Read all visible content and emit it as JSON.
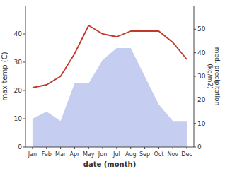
{
  "chart_data": {
    "type": "line",
    "x_label": "date (month)",
    "y_label": "max temp (C)",
    "y2_label": "med. precipitation\n(kg/m2)",
    "categories": [
      "Jan",
      "Feb",
      "Mar",
      "Apr",
      "May",
      "Jun",
      "Jul",
      "Aug",
      "Sep",
      "Oct",
      "Nov",
      "Dec"
    ],
    "series": [
      {
        "type": "area",
        "axis": "y2",
        "color": "#c5cdf0",
        "values": [
          12,
          15,
          11,
          27,
          27,
          37,
          42,
          42,
          30,
          18,
          11,
          11
        ]
      },
      {
        "type": "line",
        "color": "#c0392b",
        "values": [
          21,
          22,
          25,
          33,
          43,
          40,
          39,
          41,
          41,
          41,
          37,
          31
        ]
      }
    ],
    "ylim": [
      0,
      50
    ],
    "yticks": [
      0,
      10,
      20,
      30,
      40
    ],
    "y2lim": [
      0,
      60
    ],
    "y2ticks": [
      0,
      10,
      20,
      30,
      40,
      50
    ],
    "grid": false
  }
}
